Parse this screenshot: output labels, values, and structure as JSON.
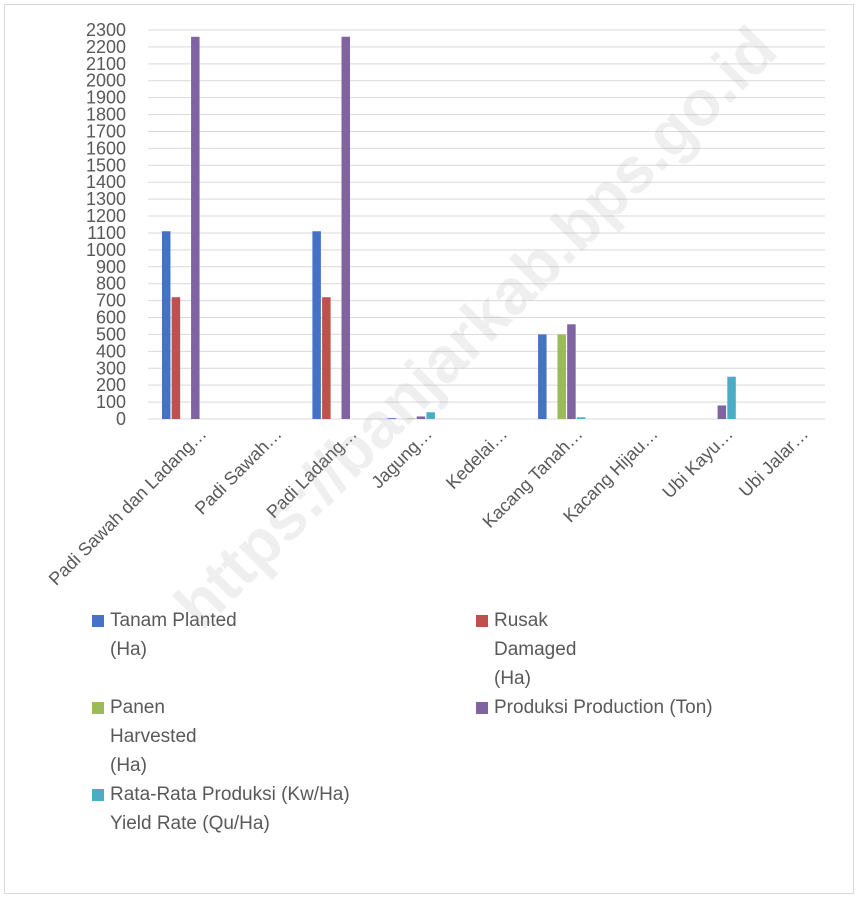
{
  "watermark": "https://banjarkab.bps.go.id",
  "chart_data": {
    "type": "bar",
    "title": "",
    "xlabel": "",
    "ylabel": "",
    "ylim": [
      0,
      2300
    ],
    "ytick_step": 100,
    "grid": true,
    "legend_position": "bottom",
    "categories": [
      "Padi Sawah dan Ladang…",
      "Padi Sawah…",
      "Padi Ladang…",
      "Jagung…",
      "Kedelai…",
      "Kacang Tanah…",
      "Kacang Hijau…",
      "Ubi Kayu…",
      "Ubi Jalar…"
    ],
    "series": [
      {
        "name": "Tanam Planted (Ha)",
        "color": "#4472C4",
        "values": [
          1110,
          0,
          1110,
          5,
          0,
          500,
          0,
          0,
          0
        ]
      },
      {
        "name": "Rusak Damaged (Ha)",
        "color": "#C0504D",
        "values": [
          720,
          0,
          720,
          0,
          0,
          0,
          0,
          0,
          0
        ]
      },
      {
        "name": "Panen Harvested (Ha)",
        "color": "#9BBB59",
        "values": [
          0,
          0,
          0,
          3,
          0,
          500,
          0,
          0,
          0
        ]
      },
      {
        "name": "Produksi Production (Ton)",
        "color": "#8064A2",
        "values": [
          2260,
          0,
          2260,
          15,
          0,
          560,
          0,
          80,
          0
        ]
      },
      {
        "name": "Rata-Rata Produksi (Kw/Ha) Yield Rate (Qu/Ha)",
        "color": "#4BACC6",
        "values": [
          0,
          0,
          0,
          40,
          0,
          10,
          0,
          250,
          0
        ]
      }
    ]
  },
  "legend": [
    {
      "label": "Tanam Planted (Ha)",
      "color": "#4472C4"
    },
    {
      "label": "Rusak Damaged (Ha)",
      "color": "#C0504D"
    },
    {
      "label": "Panen Harvested (Ha)",
      "color": "#9BBB59"
    },
    {
      "label": "Produksi Production (Ton)",
      "color": "#8064A2"
    },
    {
      "label": "Rata-Rata Produksi (Kw/Ha) Yield Rate (Qu/Ha)",
      "color": "#4BACC6"
    }
  ]
}
